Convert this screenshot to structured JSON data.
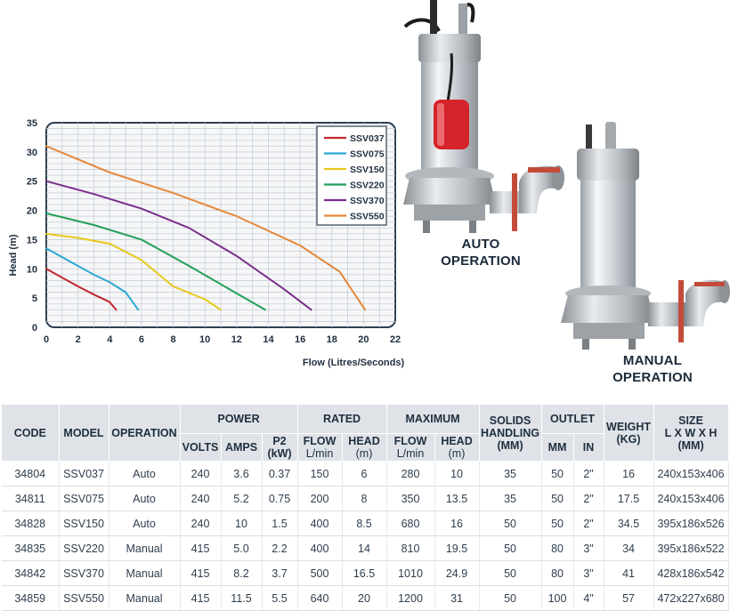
{
  "chart_data": {
    "type": "line",
    "xlabel": "Flow (Litres/Seconds)",
    "ylabel": "Head (m)",
    "xlim": [
      0,
      22
    ],
    "ylim": [
      0,
      35
    ],
    "xticks": [
      "0",
      "2",
      "4",
      "6",
      "8",
      "10",
      "12",
      "14",
      "16",
      "18",
      "20",
      "22"
    ],
    "yticks": [
      "0",
      "5",
      "10",
      "15",
      "20",
      "25",
      "30",
      "35"
    ],
    "grid": true,
    "legend_position": "top-right",
    "series": [
      {
        "name": "SSV037",
        "color": "#c0282d",
        "points": [
          [
            0,
            10
          ],
          [
            1,
            8.5
          ],
          [
            2,
            7
          ],
          [
            3,
            5.6
          ],
          [
            4,
            4.3
          ],
          [
            4.4,
            3
          ]
        ]
      },
      {
        "name": "SSV075",
        "color": "#2aa9d2",
        "points": [
          [
            0,
            13.5
          ],
          [
            1,
            12
          ],
          [
            2,
            10.5
          ],
          [
            3,
            9
          ],
          [
            4,
            7.7
          ],
          [
            5,
            6
          ],
          [
            5.8,
            3
          ]
        ]
      },
      {
        "name": "SSV150",
        "color": "#e8c81a",
        "points": [
          [
            0,
            16
          ],
          [
            2,
            15.3
          ],
          [
            4,
            14.3
          ],
          [
            6,
            11.5
          ],
          [
            8,
            7
          ],
          [
            10,
            4.8
          ],
          [
            11,
            3
          ]
        ]
      },
      {
        "name": "SSV220",
        "color": "#22a05a",
        "points": [
          [
            0,
            19.5
          ],
          [
            3,
            17.5
          ],
          [
            6,
            15
          ],
          [
            9,
            10.5
          ],
          [
            12,
            5.8
          ],
          [
            13.8,
            3
          ]
        ]
      },
      {
        "name": "SSV370",
        "color": "#7b2e8c",
        "points": [
          [
            0,
            25
          ],
          [
            3,
            22.8
          ],
          [
            6,
            20.3
          ],
          [
            9,
            17
          ],
          [
            12,
            12.2
          ],
          [
            15,
            6.5
          ],
          [
            16.7,
            3
          ]
        ]
      },
      {
        "name": "SSV550",
        "color": "#e5883a",
        "points": [
          [
            0,
            31
          ],
          [
            4,
            26.5
          ],
          [
            8,
            23
          ],
          [
            12,
            19
          ],
          [
            16,
            14
          ],
          [
            18.5,
            9.5
          ],
          [
            20.1,
            3
          ]
        ]
      }
    ]
  },
  "pumps": {
    "auto_label": [
      "AUTO",
      "OPERATION"
    ],
    "manual_label": [
      "MANUAL",
      "OPERATION"
    ]
  },
  "table": {
    "group_headers": {
      "code": "CODE",
      "model": "MODEL",
      "operation": "OPERATION",
      "power": "POWER",
      "rated": "RATED",
      "maximum": "MAXIMUM",
      "solids": [
        "SOLIDS",
        "HANDLING",
        "(MM)"
      ],
      "outlet": "OUTLET",
      "weight": [
        "WEIGHT",
        "(KG)"
      ],
      "size": [
        "SIZE",
        "L X W X H",
        "(MM)"
      ]
    },
    "sub_headers": {
      "volts": "VOLTS",
      "amps": "AMPS",
      "p2": [
        "P2",
        "(kW)"
      ],
      "rated_flow": [
        "FLOW",
        "L/min"
      ],
      "rated_head": [
        "HEAD",
        "(m)"
      ],
      "max_flow": [
        "FLOW",
        "L/min"
      ],
      "max_head": [
        "HEAD",
        "(m)"
      ],
      "mm": "MM",
      "in": "IN"
    },
    "rows": [
      [
        "34804",
        "SSV037",
        "Auto",
        "240",
        "3.6",
        "0.37",
        "150",
        "6",
        "280",
        "10",
        "35",
        "50",
        "2\"",
        "16",
        "240x153x406"
      ],
      [
        "34811",
        "SSV075",
        "Auto",
        "240",
        "5.2",
        "0.75",
        "200",
        "8",
        "350",
        "13.5",
        "35",
        "50",
        "2\"",
        "17.5",
        "240x153x406"
      ],
      [
        "34828",
        "SSV150",
        "Auto",
        "240",
        "10",
        "1.5",
        "400",
        "8.5",
        "680",
        "16",
        "50",
        "50",
        "2\"",
        "34.5",
        "395x186x526"
      ],
      [
        "34835",
        "SSV220",
        "Manual",
        "415",
        "5.0",
        "2.2",
        "400",
        "14",
        "810",
        "19.5",
        "50",
        "80",
        "3\"",
        "34",
        "395x186x522"
      ],
      [
        "34842",
        "SSV370",
        "Manual",
        "415",
        "8.2",
        "3.7",
        "500",
        "16.5",
        "1010",
        "24.9",
        "50",
        "80",
        "3\"",
        "41",
        "428x186x542"
      ],
      [
        "34859",
        "SSV550",
        "Manual",
        "415",
        "11.5",
        "5.5",
        "640",
        "20",
        "1200",
        "31",
        "50",
        "100",
        "4\"",
        "57",
        "472x227x680"
      ]
    ]
  }
}
